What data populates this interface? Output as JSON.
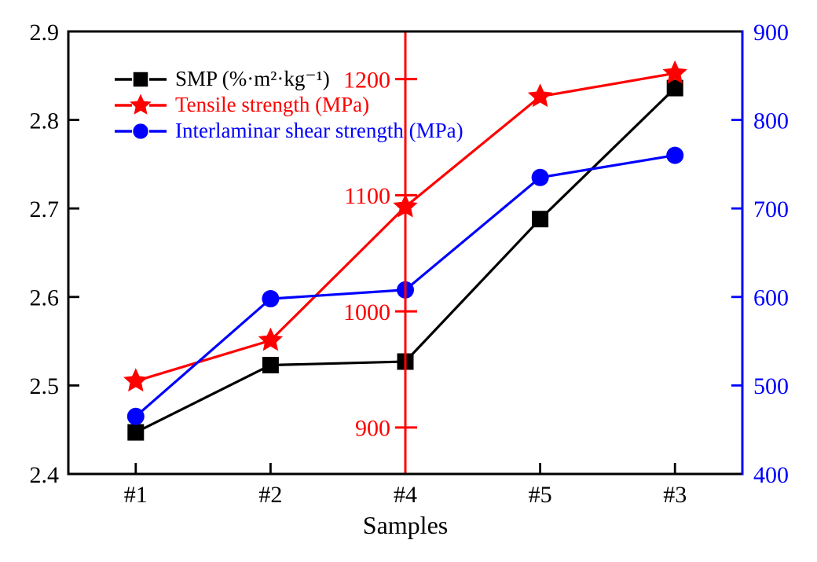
{
  "chart_data": {
    "type": "line",
    "title": "",
    "xlabel": "Samples",
    "categories": [
      "#1",
      "#2",
      "#4",
      "#5",
      "#3"
    ],
    "series": [
      {
        "name": "SMP (%·m²·kg⁻¹)",
        "color": "#000000",
        "marker": "square",
        "axis": "left",
        "values": [
          2.447,
          2.523,
          2.527,
          2.688,
          2.836
        ]
      },
      {
        "name": "Tensile strength (MPa)",
        "color": "#ff0000",
        "marker": "star",
        "axis": "middle",
        "values": [
          940,
          975,
          1090,
          1185,
          1205
        ]
      },
      {
        "name": "Interlaminar shear strength (MPa)",
        "color": "#0000ff",
        "marker": "circle",
        "axis": "right",
        "values": [
          465,
          598,
          608,
          735,
          760
        ]
      }
    ],
    "axes": {
      "left": {
        "min": 2.4,
        "max": 2.9,
        "ticks": [
          "2.4",
          "2.5",
          "2.6",
          "2.7",
          "2.8",
          "2.9"
        ],
        "color": "#000000"
      },
      "right": {
        "min": 400,
        "max": 900,
        "ticks": [
          "400",
          "500",
          "600",
          "700",
          "800",
          "900"
        ],
        "color": "#0000ff"
      },
      "middle": {
        "min": 860,
        "max": 1241,
        "ticks": [
          "900",
          "1000",
          "1100",
          "1200"
        ],
        "color": "#ff0000",
        "position_category": "#4"
      }
    },
    "legend_position": "top-left-inside",
    "grid": false
  }
}
